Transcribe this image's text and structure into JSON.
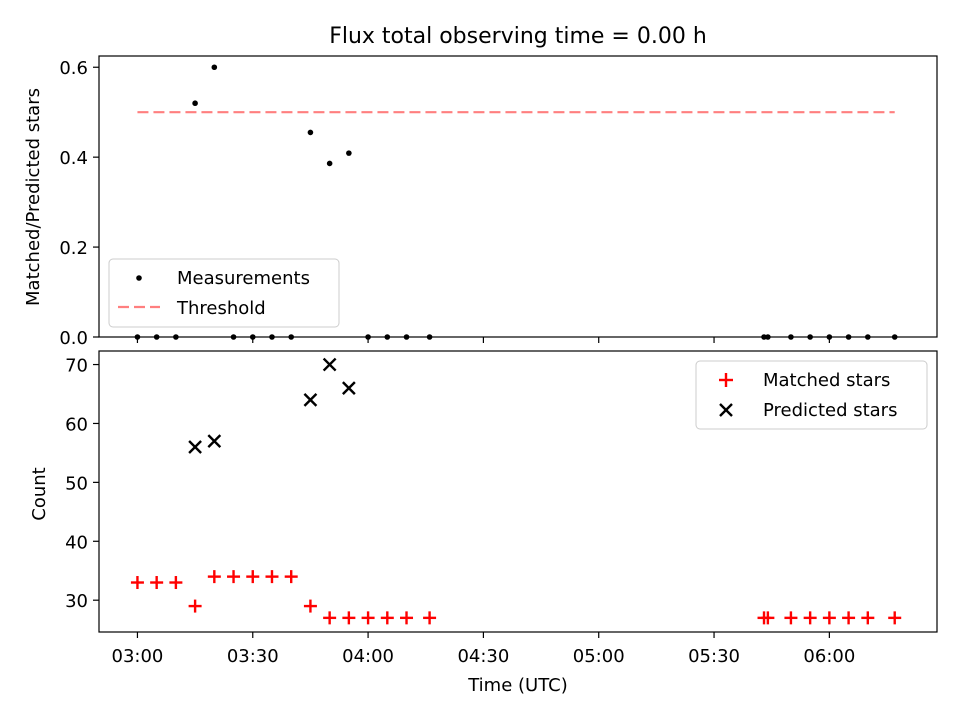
{
  "chart_data": [
    {
      "type": "scatter",
      "title": "Flux total observing time = 0.00 h",
      "xlabel": "",
      "ylabel": "Matched/Predicted stars",
      "xlim": [
        "02:50",
        "06:28"
      ],
      "ylim": [
        0,
        0.625
      ],
      "yticks": [
        {
          "value": 0.0,
          "label": "0.0"
        },
        {
          "value": 0.2,
          "label": "0.2"
        },
        {
          "value": 0.4,
          "label": "0.4"
        },
        {
          "value": 0.6,
          "label": "0.6"
        }
      ],
      "legend": {
        "placement": "lower-left",
        "entries": [
          {
            "label": "Measurements",
            "color": "#000000",
            "marker": "dot"
          },
          {
            "label": "Threshold",
            "color": "#ff7f7f",
            "marker": "dashed-line"
          }
        ]
      },
      "threshold": {
        "value": 0.5,
        "x_from": "03:00",
        "x_to": "06:17",
        "color": "#ff7f7f"
      },
      "series": [
        {
          "name": "Measurements",
          "color": "#000000",
          "points": [
            {
              "x": "03:00",
              "y": 0.0
            },
            {
              "x": "03:05",
              "y": 0.0
            },
            {
              "x": "03:10",
              "y": 0.0
            },
            {
              "x": "03:15",
              "y": 0.52
            },
            {
              "x": "03:20",
              "y": 0.6
            },
            {
              "x": "03:25",
              "y": 0.0
            },
            {
              "x": "03:30",
              "y": 0.0
            },
            {
              "x": "03:35",
              "y": 0.0
            },
            {
              "x": "03:40",
              "y": 0.0
            },
            {
              "x": "03:45",
              "y": 0.455
            },
            {
              "x": "03:50",
              "y": 0.386
            },
            {
              "x": "03:55",
              "y": 0.409
            },
            {
              "x": "04:00",
              "y": 0.0
            },
            {
              "x": "04:05",
              "y": 0.0
            },
            {
              "x": "04:10",
              "y": 0.0
            },
            {
              "x": "04:16",
              "y": 0.0
            },
            {
              "x": "05:43",
              "y": 0.0
            },
            {
              "x": "05:44",
              "y": 0.0
            },
            {
              "x": "05:50",
              "y": 0.0
            },
            {
              "x": "05:55",
              "y": 0.0
            },
            {
              "x": "06:00",
              "y": 0.0
            },
            {
              "x": "06:05",
              "y": 0.0
            },
            {
              "x": "06:10",
              "y": 0.0
            },
            {
              "x": "06:17",
              "y": 0.0
            }
          ]
        }
      ]
    },
    {
      "type": "scatter",
      "title": "",
      "xlabel": "Time (UTC)",
      "ylabel": "Count",
      "xlim": [
        "02:50",
        "06:28"
      ],
      "ylim": [
        24.6,
        72.3
      ],
      "yticks": [
        {
          "value": 30,
          "label": "30"
        },
        {
          "value": 40,
          "label": "40"
        },
        {
          "value": 50,
          "label": "50"
        },
        {
          "value": 60,
          "label": "60"
        },
        {
          "value": 70,
          "label": "70"
        }
      ],
      "xticks": [
        "03:00",
        "03:30",
        "04:00",
        "04:30",
        "05:00",
        "05:30",
        "06:00"
      ],
      "legend": {
        "placement": "upper-right",
        "entries": [
          {
            "label": "Matched stars",
            "color": "#ff0000",
            "marker": "plus"
          },
          {
            "label": "Predicted stars",
            "color": "#000000",
            "marker": "x"
          }
        ]
      },
      "series": [
        {
          "name": "Matched stars",
          "color": "#ff0000",
          "marker": "plus",
          "points": [
            {
              "x": "03:00",
              "y": 33
            },
            {
              "x": "03:05",
              "y": 33
            },
            {
              "x": "03:10",
              "y": 33
            },
            {
              "x": "03:15",
              "y": 29
            },
            {
              "x": "03:20",
              "y": 34
            },
            {
              "x": "03:25",
              "y": 34
            },
            {
              "x": "03:30",
              "y": 34
            },
            {
              "x": "03:35",
              "y": 34
            },
            {
              "x": "03:40",
              "y": 34
            },
            {
              "x": "03:45",
              "y": 29
            },
            {
              "x": "03:50",
              "y": 27
            },
            {
              "x": "03:55",
              "y": 27
            },
            {
              "x": "04:00",
              "y": 27
            },
            {
              "x": "04:05",
              "y": 27
            },
            {
              "x": "04:10",
              "y": 27
            },
            {
              "x": "04:16",
              "y": 27
            },
            {
              "x": "05:43",
              "y": 27
            },
            {
              "x": "05:44",
              "y": 27
            },
            {
              "x": "05:50",
              "y": 27
            },
            {
              "x": "05:55",
              "y": 27
            },
            {
              "x": "06:00",
              "y": 27
            },
            {
              "x": "06:05",
              "y": 27
            },
            {
              "x": "06:10",
              "y": 27
            },
            {
              "x": "06:17",
              "y": 27
            }
          ]
        },
        {
          "name": "Predicted stars",
          "color": "#000000",
          "marker": "x",
          "points": [
            {
              "x": "03:15",
              "y": 56
            },
            {
              "x": "03:20",
              "y": 57
            },
            {
              "x": "03:45",
              "y": 64
            },
            {
              "x": "03:50",
              "y": 70
            },
            {
              "x": "03:55",
              "y": 66
            }
          ]
        }
      ]
    }
  ]
}
